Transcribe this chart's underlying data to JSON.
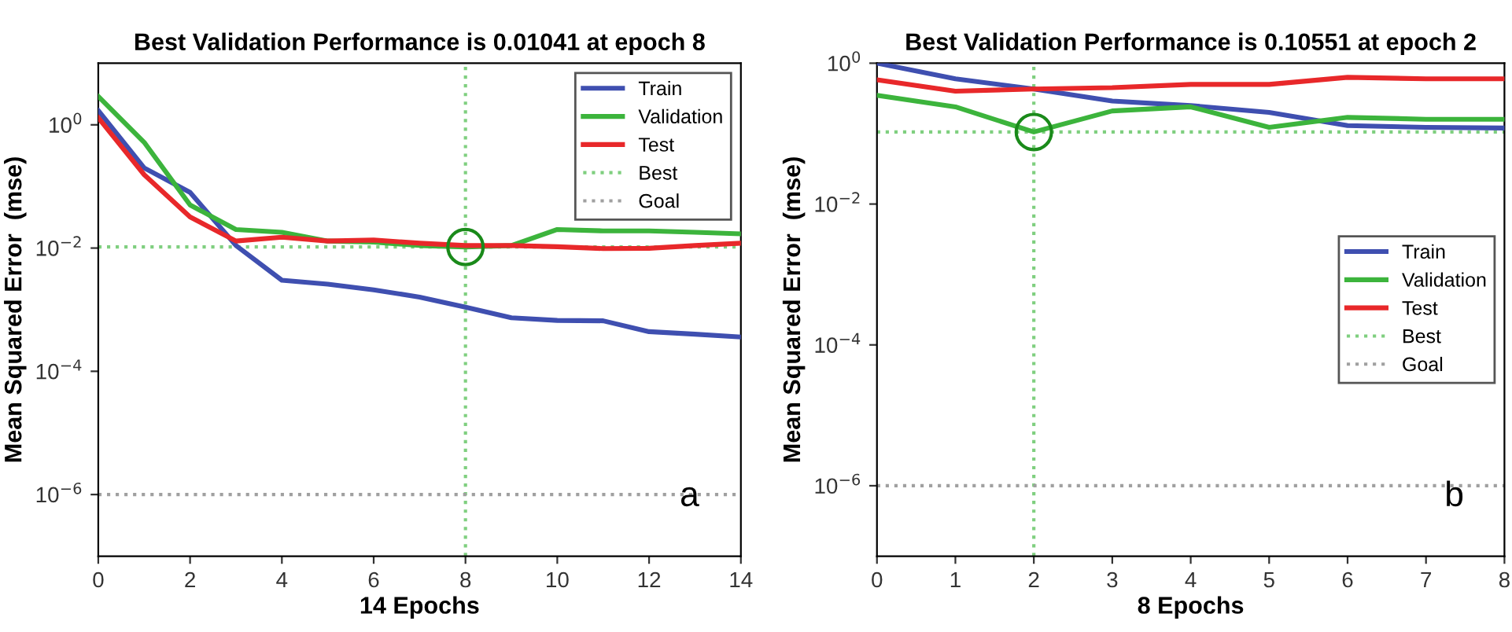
{
  "chart_data": [
    {
      "type": "line",
      "title": "Best Validation Performance is 0.01041 at epoch 8",
      "xlabel": "14 Epochs",
      "ylabel": "Mean Squared Error  (mse)",
      "log": "y",
      "legend": "top right",
      "annotations": [
        "a"
      ],
      "x": [
        0,
        1,
        2,
        3,
        4,
        5,
        6,
        7,
        8,
        9,
        10,
        11,
        12,
        13,
        14
      ],
      "xlim": [
        0,
        14
      ],
      "xticks": [
        0,
        2,
        4,
        6,
        8,
        10,
        12,
        14
      ],
      "ylim": [
        1e-07,
        10
      ],
      "yticks": [
        {
          "value": 1e-06,
          "label": "10$^{−6}$"
        },
        {
          "value": 0.0001,
          "label": "10$^{−4}$"
        },
        {
          "value": 0.01,
          "label": "10$^{−2}$"
        },
        {
          "value": 1,
          "label": "10$^{0}$"
        }
      ],
      "series": [
        {
          "name": "Train",
          "color": "#3f4fb0",
          "values": [
            1.7,
            0.2,
            0.08,
            0.011,
            0.003,
            0.0026,
            0.0021,
            0.0016,
            0.0011,
            0.00074,
            0.00067,
            0.00066,
            0.00044,
            0.0004,
            0.00036
          ]
        },
        {
          "name": "Validation",
          "color": "#3cb43c",
          "values": [
            2.9,
            0.52,
            0.05,
            0.02,
            0.018,
            0.013,
            0.0125,
            0.011,
            0.01041,
            0.011,
            0.02,
            0.019,
            0.019,
            0.018,
            0.017
          ]
        },
        {
          "name": "Test",
          "color": "#e8282a",
          "values": [
            1.3,
            0.155,
            0.032,
            0.013,
            0.015,
            0.013,
            0.0135,
            0.012,
            0.011,
            0.011,
            0.0105,
            0.0098,
            0.0099,
            0.011,
            0.012
          ]
        },
        {
          "type": "scatter",
          "marker": "circle",
          "color": "#1a8a1a",
          "x": [
            8
          ],
          "values": [
            0.01041
          ]
        }
      ],
      "ref_lines": [
        {
          "axis": "x",
          "value": 8,
          "color": "#7fcf7f",
          "line_style": "dotted"
        },
        {
          "axis": "y",
          "value": 0.01041,
          "label": "Best",
          "color": "#7fcf7f",
          "line_style": "dotted"
        },
        {
          "axis": "y",
          "value": 1e-06,
          "label": "Goal",
          "color": "#a0a0a0",
          "line_style": "dotted"
        }
      ]
    },
    {
      "type": "line",
      "title": "Best Validation Performance is 0.10551 at epoch 2",
      "xlabel": "8 Epochs",
      "ylabel": "Mean Squared Error  (mse)",
      "log": "y",
      "legend": "right",
      "annotations": [
        "b"
      ],
      "x": [
        0,
        1,
        2,
        3,
        4,
        5,
        6,
        7,
        8
      ],
      "xlim": [
        0,
        8
      ],
      "xticks": [
        0,
        1,
        2,
        3,
        4,
        5,
        6,
        7,
        8
      ],
      "ylim": [
        1e-07,
        1
      ],
      "yticks": [
        {
          "value": 1e-06,
          "label": "10$^{−6}$"
        },
        {
          "value": 0.0001,
          "label": "10$^{−4}$"
        },
        {
          "value": 0.01,
          "label": "10$^{−2}$"
        },
        {
          "value": 1,
          "label": "10$^{0}$"
        }
      ],
      "series": [
        {
          "name": "Train",
          "color": "#3f4fb0",
          "values": [
            1.0,
            0.6,
            0.43,
            0.29,
            0.25,
            0.2,
            0.13,
            0.123,
            0.12
          ]
        },
        {
          "name": "Validation",
          "color": "#3cb43c",
          "values": [
            0.35,
            0.24,
            0.10551,
            0.21,
            0.24,
            0.123,
            0.17,
            0.16,
            0.16
          ]
        },
        {
          "name": "Test",
          "color": "#e8282a",
          "values": [
            0.58,
            0.4,
            0.43,
            0.45,
            0.5,
            0.5,
            0.63,
            0.6,
            0.6
          ]
        },
        {
          "type": "scatter",
          "marker": "circle",
          "color": "#1a8a1a",
          "x": [
            2
          ],
          "values": [
            0.10551
          ]
        }
      ],
      "ref_lines": [
        {
          "axis": "x",
          "value": 2,
          "color": "#7fcf7f",
          "line_style": "dotted"
        },
        {
          "axis": "y",
          "value": 0.10551,
          "label": "Best",
          "color": "#7fcf7f",
          "line_style": "dotted"
        },
        {
          "axis": "y",
          "value": 1e-06,
          "label": "Goal",
          "color": "#a0a0a0",
          "line_style": "dotted"
        }
      ]
    }
  ]
}
